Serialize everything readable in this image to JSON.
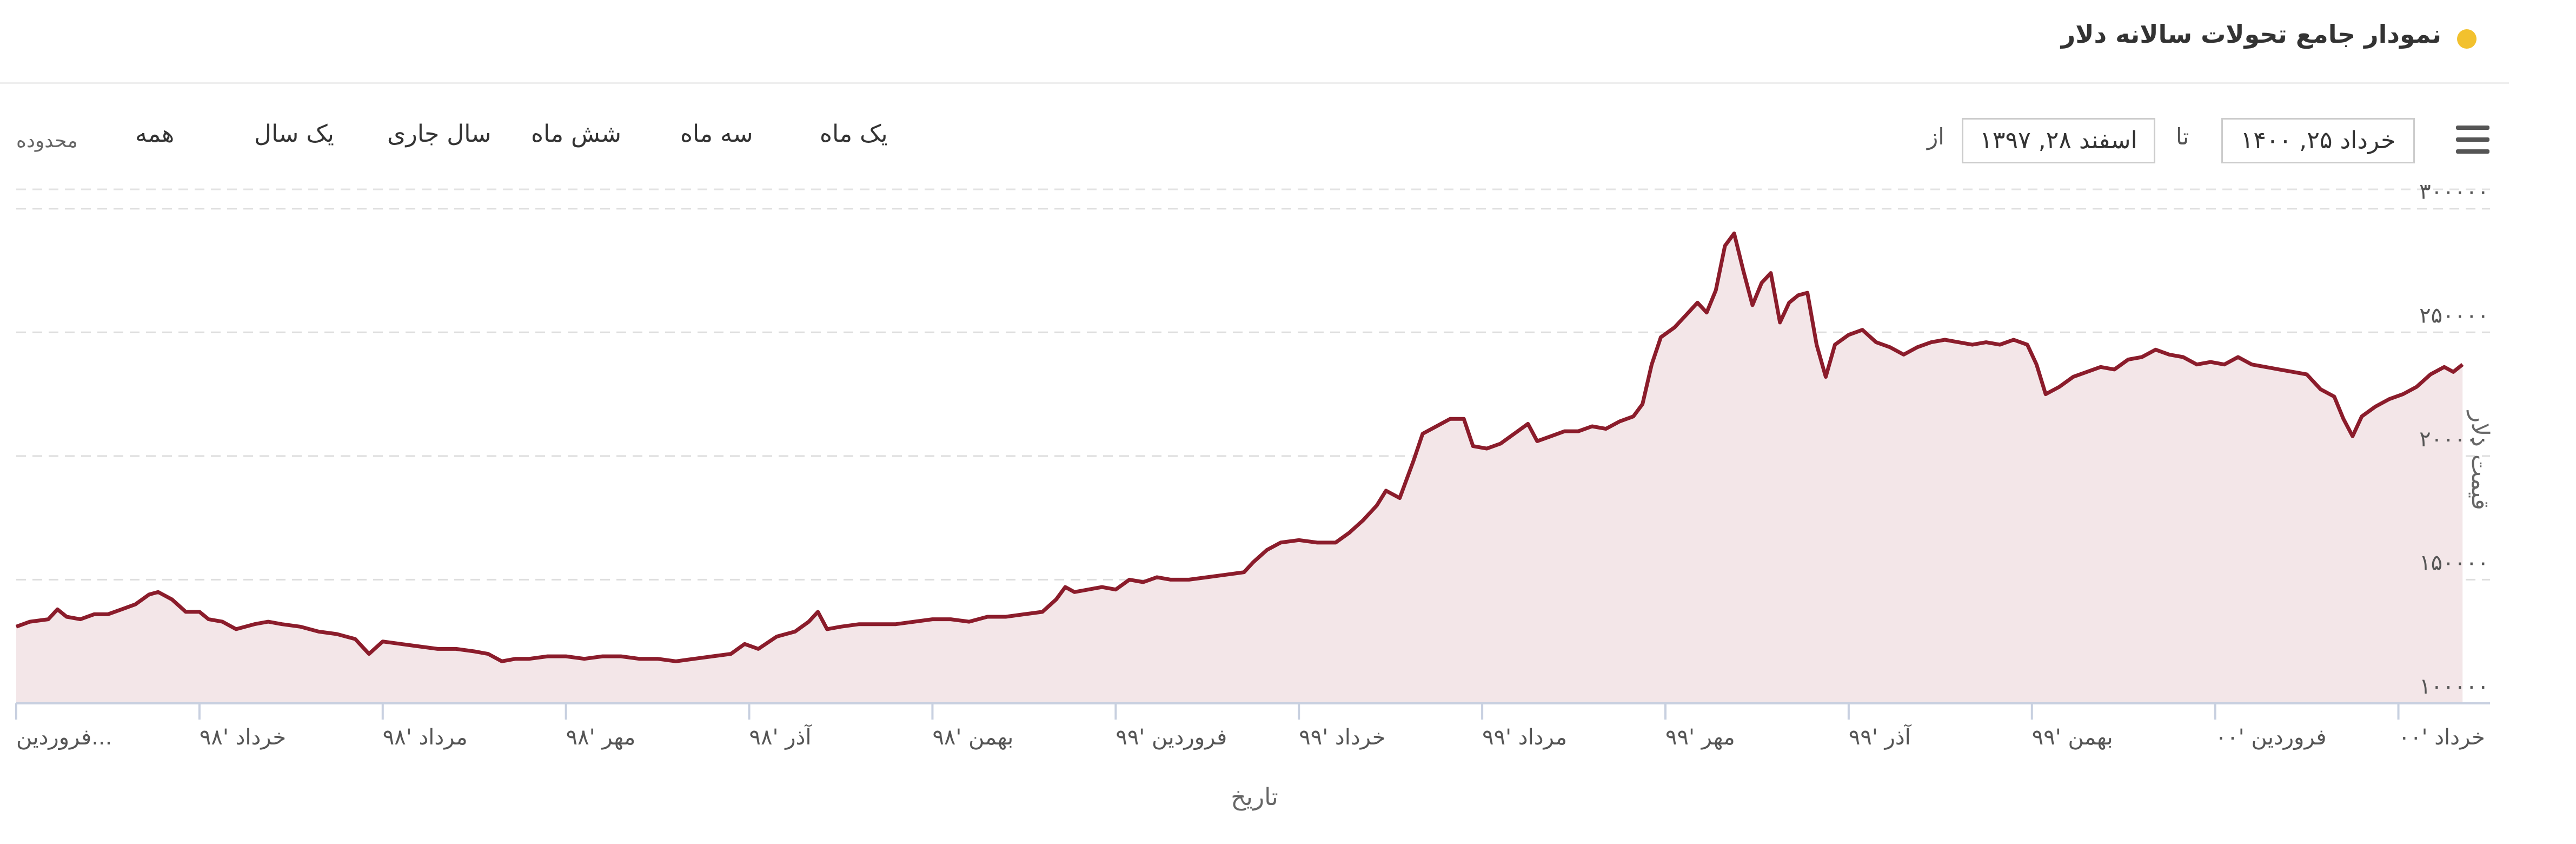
{
  "header": {
    "title": "نمودار جامع تحولات سالانه دلار",
    "dot_color": "#f2c12e"
  },
  "range_selector": {
    "label": "محدوده",
    "buttons": [
      "همه",
      "یک سال",
      "سال جاری",
      "شش ماه",
      "سه ماه",
      "یک ماه"
    ]
  },
  "date_range": {
    "from_label": "از",
    "from_value": "اسفند ۲۸, ۱۳۹۷",
    "to_label": "تا",
    "to_value": "خرداد ۲۵, ۱۴۰۰"
  },
  "menu_icon": "hamburger-menu-icon",
  "chart_data": {
    "type": "area",
    "xlabel": "تاریخ",
    "ylabel": "قیمت دلار",
    "ylim": [
      100000,
      310000
    ],
    "yticks": [
      100000,
      150000,
      200000,
      250000,
      300000
    ],
    "ytick_labels": [
      "۱۰۰۰۰۰",
      "۱۵۰۰۰۰",
      "۲۰۰۰۰۰",
      "۲۵۰۰۰۰",
      "۳۰۰۰۰۰"
    ],
    "xlim": [
      0,
      27
    ],
    "xticks": [
      {
        "x": 0,
        "label": "فروردین..."
      },
      {
        "x": 2,
        "label": "خرداد '۹۸"
      },
      {
        "x": 4,
        "label": "مرداد '۹۸"
      },
      {
        "x": 6,
        "label": "مهر '۹۸"
      },
      {
        "x": 8,
        "label": "آذر '۹۸"
      },
      {
        "x": 10,
        "label": "بهمن '۹۸"
      },
      {
        "x": 12,
        "label": "فروردین '۹۹"
      },
      {
        "x": 14,
        "label": "خرداد '۹۹"
      },
      {
        "x": 16,
        "label": "مرداد '۹۹"
      },
      {
        "x": 18,
        "label": "مهر '۹۹"
      },
      {
        "x": 20,
        "label": "آذر '۹۹"
      },
      {
        "x": 22,
        "label": "بهمن '۹۹"
      },
      {
        "x": 24,
        "label": "فروردین '۰۰"
      },
      {
        "x": 26,
        "label": "خرداد '۰۰"
      }
    ],
    "grid": true,
    "line_color": "#8b1c2b",
    "fill_color": "#f3e6e8",
    "series": [
      {
        "points": [
          [
            0.0,
            131000
          ],
          [
            0.15,
            133000
          ],
          [
            0.35,
            134000
          ],
          [
            0.45,
            138000
          ],
          [
            0.55,
            135000
          ],
          [
            0.7,
            134000
          ],
          [
            0.85,
            136000
          ],
          [
            1.0,
            136000
          ],
          [
            1.15,
            138000
          ],
          [
            1.3,
            140000
          ],
          [
            1.45,
            144000
          ],
          [
            1.55,
            145000
          ],
          [
            1.7,
            142000
          ],
          [
            1.85,
            137000
          ],
          [
            2.0,
            137000
          ],
          [
            2.1,
            134000
          ],
          [
            2.25,
            133000
          ],
          [
            2.4,
            130000
          ],
          [
            2.6,
            132000
          ],
          [
            2.75,
            133000
          ],
          [
            2.9,
            132000
          ],
          [
            3.1,
            131000
          ],
          [
            3.3,
            129000
          ],
          [
            3.5,
            128000
          ],
          [
            3.7,
            126000
          ],
          [
            3.85,
            120000
          ],
          [
            4.0,
            125000
          ],
          [
            4.2,
            124000
          ],
          [
            4.4,
            123000
          ],
          [
            4.6,
            122000
          ],
          [
            4.8,
            122000
          ],
          [
            5.0,
            121000
          ],
          [
            5.15,
            120000
          ],
          [
            5.3,
            117000
          ],
          [
            5.45,
            118000
          ],
          [
            5.6,
            118000
          ],
          [
            5.8,
            119000
          ],
          [
            6.0,
            119000
          ],
          [
            6.2,
            118000
          ],
          [
            6.4,
            119000
          ],
          [
            6.6,
            119000
          ],
          [
            6.8,
            118000
          ],
          [
            7.0,
            118000
          ],
          [
            7.2,
            117000
          ],
          [
            7.4,
            118000
          ],
          [
            7.6,
            119000
          ],
          [
            7.8,
            120000
          ],
          [
            7.95,
            124000
          ],
          [
            8.1,
            122000
          ],
          [
            8.3,
            127000
          ],
          [
            8.5,
            129000
          ],
          [
            8.65,
            133000
          ],
          [
            8.75,
            137000
          ],
          [
            8.85,
            130000
          ],
          [
            9.0,
            131000
          ],
          [
            9.2,
            132000
          ],
          [
            9.4,
            132000
          ],
          [
            9.6,
            132000
          ],
          [
            9.8,
            133000
          ],
          [
            10.0,
            134000
          ],
          [
            10.2,
            134000
          ],
          [
            10.4,
            133000
          ],
          [
            10.6,
            135000
          ],
          [
            10.8,
            135000
          ],
          [
            11.0,
            136000
          ],
          [
            11.2,
            137000
          ],
          [
            11.35,
            142000
          ],
          [
            11.45,
            147000
          ],
          [
            11.55,
            145000
          ],
          [
            11.7,
            146000
          ],
          [
            11.85,
            147000
          ],
          [
            12.0,
            146000
          ],
          [
            12.15,
            150000
          ],
          [
            12.3,
            149000
          ],
          [
            12.45,
            151000
          ],
          [
            12.6,
            150000
          ],
          [
            12.8,
            150000
          ],
          [
            13.0,
            151000
          ],
          [
            13.2,
            152000
          ],
          [
            13.4,
            153000
          ],
          [
            13.5,
            157000
          ],
          [
            13.65,
            162000
          ],
          [
            13.8,
            165000
          ],
          [
            14.0,
            166000
          ],
          [
            14.2,
            165000
          ],
          [
            14.4,
            165000
          ],
          [
            14.55,
            169000
          ],
          [
            14.7,
            174000
          ],
          [
            14.85,
            180000
          ],
          [
            14.95,
            186000
          ],
          [
            15.1,
            183000
          ],
          [
            15.25,
            198000
          ],
          [
            15.35,
            209000
          ],
          [
            15.5,
            212000
          ],
          [
            15.65,
            215000
          ],
          [
            15.8,
            215000
          ],
          [
            15.9,
            204000
          ],
          [
            16.05,
            203000
          ],
          [
            16.2,
            205000
          ],
          [
            16.35,
            209000
          ],
          [
            16.5,
            213000
          ],
          [
            16.6,
            206000
          ],
          [
            16.75,
            208000
          ],
          [
            16.9,
            210000
          ],
          [
            17.05,
            210000
          ],
          [
            17.2,
            212000
          ],
          [
            17.35,
            211000
          ],
          [
            17.5,
            214000
          ],
          [
            17.65,
            216000
          ],
          [
            17.75,
            221000
          ],
          [
            17.85,
            237000
          ],
          [
            17.95,
            248000
          ],
          [
            18.1,
            252000
          ],
          [
            18.25,
            258000
          ],
          [
            18.35,
            262000
          ],
          [
            18.45,
            258000
          ],
          [
            18.55,
            267000
          ],
          [
            18.65,
            285000
          ],
          [
            18.75,
            290000
          ],
          [
            18.85,
            275000
          ],
          [
            18.95,
            261000
          ],
          [
            19.05,
            270000
          ],
          [
            19.15,
            274000
          ],
          [
            19.25,
            254000
          ],
          [
            19.35,
            262000
          ],
          [
            19.45,
            265000
          ],
          [
            19.55,
            266000
          ],
          [
            19.65,
            245000
          ],
          [
            19.75,
            232000
          ],
          [
            19.85,
            245000
          ],
          [
            20.0,
            249000
          ],
          [
            20.15,
            251000
          ],
          [
            20.3,
            246000
          ],
          [
            20.45,
            244000
          ],
          [
            20.6,
            241000
          ],
          [
            20.75,
            244000
          ],
          [
            20.9,
            246000
          ],
          [
            21.05,
            247000
          ],
          [
            21.2,
            246000
          ],
          [
            21.35,
            245000
          ],
          [
            21.5,
            246000
          ],
          [
            21.65,
            245000
          ],
          [
            21.8,
            247000
          ],
          [
            21.95,
            245000
          ],
          [
            22.05,
            237000
          ],
          [
            22.15,
            225000
          ],
          [
            22.3,
            228000
          ],
          [
            22.45,
            232000
          ],
          [
            22.6,
            234000
          ],
          [
            22.75,
            236000
          ],
          [
            22.9,
            235000
          ],
          [
            23.05,
            239000
          ],
          [
            23.2,
            240000
          ],
          [
            23.35,
            243000
          ],
          [
            23.5,
            241000
          ],
          [
            23.65,
            240000
          ],
          [
            23.8,
            237000
          ],
          [
            23.95,
            238000
          ],
          [
            24.1,
            237000
          ],
          [
            24.25,
            240000
          ],
          [
            24.4,
            237000
          ],
          [
            24.55,
            236000
          ],
          [
            24.7,
            235000
          ],
          [
            24.85,
            234000
          ],
          [
            25.0,
            233000
          ],
          [
            25.15,
            227000
          ],
          [
            25.3,
            224000
          ],
          [
            25.4,
            215000
          ],
          [
            25.5,
            208000
          ],
          [
            25.6,
            216000
          ],
          [
            25.75,
            220000
          ],
          [
            25.9,
            223000
          ],
          [
            26.05,
            225000
          ],
          [
            26.2,
            228000
          ],
          [
            26.35,
            233000
          ],
          [
            26.5,
            236000
          ],
          [
            26.6,
            234000
          ],
          [
            26.7,
            237000
          ]
        ]
      }
    ]
  }
}
